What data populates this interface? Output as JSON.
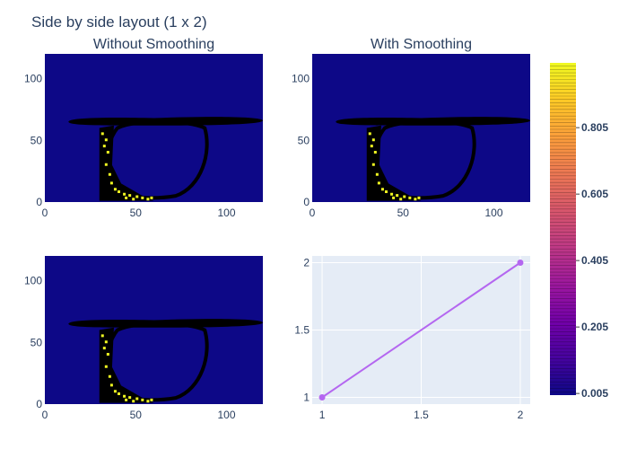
{
  "title": "Side by side layout (1 x 2)",
  "colors": {
    "background_blob": "#0d0887",
    "outline": "#000000",
    "highlight": "#f0f921",
    "line": "#b467f0",
    "line_panel_bg": "#e5ecf6",
    "grid": "#ffffff",
    "text": "#2a3f5f"
  },
  "chart_data": [
    {
      "type": "heatmap",
      "title": "Without Smoothing",
      "xlim": [
        0,
        120
      ],
      "ylim": [
        0,
        120
      ],
      "x_ticks": [
        "0",
        "50",
        "100"
      ],
      "y_ticks": [
        "0",
        "50",
        "100"
      ],
      "grid": false
    },
    {
      "type": "heatmap",
      "title": "With Smoothing",
      "xlim": [
        0,
        120
      ],
      "ylim": [
        0,
        120
      ],
      "x_ticks": [
        "0",
        "50",
        "100"
      ],
      "y_ticks": [
        "0",
        "50",
        "100"
      ],
      "grid": false
    },
    {
      "type": "heatmap",
      "title": "",
      "xlim": [
        0,
        120
      ],
      "ylim": [
        0,
        120
      ],
      "x_ticks": [
        "0",
        "50",
        "100"
      ],
      "y_ticks": [
        "0",
        "50",
        "100"
      ],
      "grid": false
    },
    {
      "type": "line",
      "title": "",
      "x": [
        1,
        2
      ],
      "y": [
        1,
        2
      ],
      "xlim": [
        0.95,
        2.05
      ],
      "ylim": [
        0.95,
        2.05
      ],
      "x_ticks": [
        1,
        1.5,
        2
      ],
      "x_tick_labels": [
        "1",
        "1.5",
        "2"
      ],
      "y_ticks": [
        1,
        1.5,
        2
      ],
      "y_tick_labels": [
        "1",
        "1.5",
        "2"
      ],
      "grid": true
    }
  ],
  "colorbar": {
    "colorscale": "plasma",
    "range": [
      0,
      1
    ],
    "tick_values": [
      0.005,
      0.205,
      0.405,
      0.605,
      0.805
    ],
    "tick_labels": [
      "0.005",
      "0.205",
      "0.405",
      "0.605",
      "0.805"
    ]
  }
}
